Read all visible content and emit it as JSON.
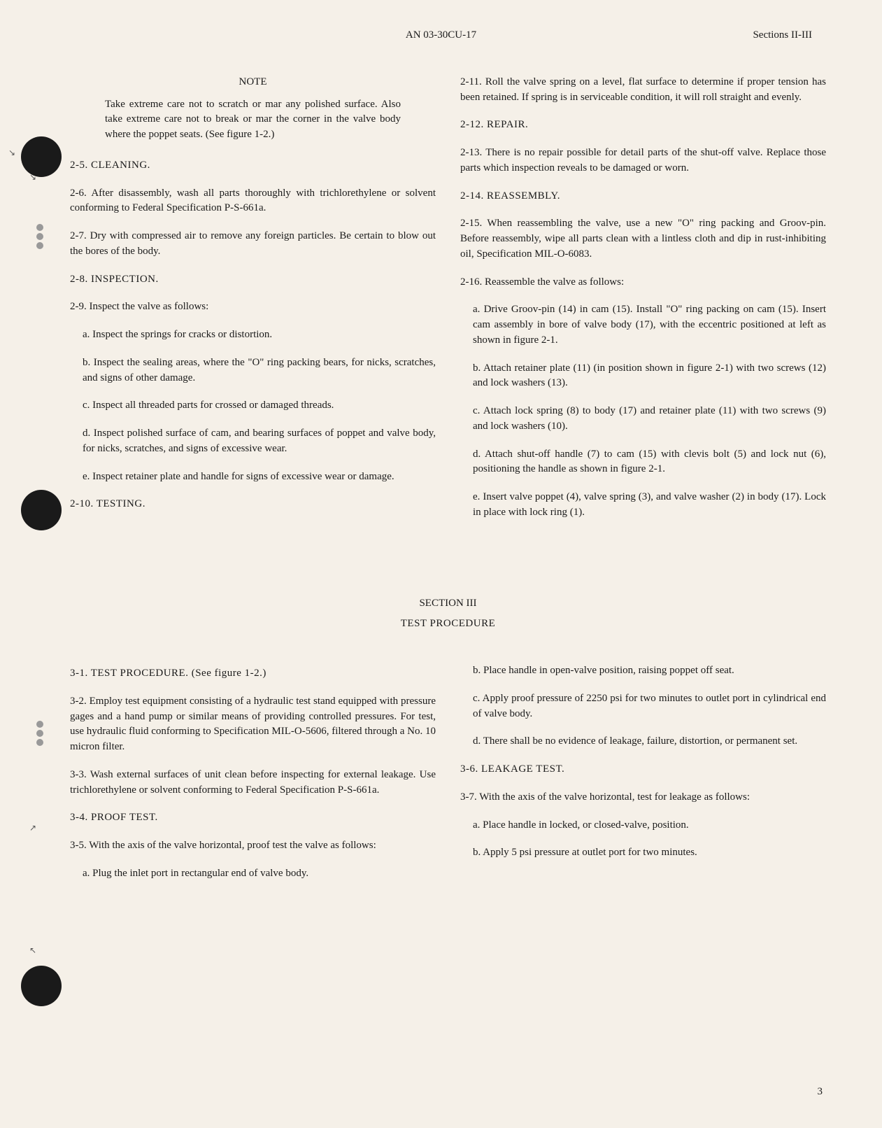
{
  "header": {
    "document_id": "AN 03-30CU-17",
    "sections": "Sections II-III"
  },
  "note": {
    "heading": "NOTE",
    "body": "Take extreme care not to scratch or mar any polished surface. Also take extreme care not to break or mar the corner in the valve body where the poppet seats. (See figure 1-2.)"
  },
  "sections": {
    "s2_5": "2-5. CLEANING.",
    "p2_6": "2-6. After disassembly, wash all parts thoroughly with trichlorethylene or solvent conforming to Federal Specification P-S-661a.",
    "p2_7": "2-7. Dry with compressed air to remove any foreign particles. Be certain to blow out the bores of the body.",
    "s2_8": "2-8. INSPECTION.",
    "p2_9": "2-9. Inspect the valve as follows:",
    "p2_9a": "a. Inspect the springs for cracks or distortion.",
    "p2_9b": "b. Inspect the sealing areas, where the \"O\" ring packing bears, for nicks, scratches, and signs of other damage.",
    "p2_9c": "c. Inspect all threaded parts for crossed or damaged threads.",
    "p2_9d": "d. Inspect polished surface of cam, and bearing surfaces of poppet and valve body, for nicks, scratches, and signs of excessive wear.",
    "p2_9e": "e. Inspect retainer plate and handle for signs of excessive wear or damage.",
    "s2_10": "2-10. TESTING.",
    "p2_11": "2-11. Roll the valve spring on a level, flat surface to determine if proper tension has been retained. If spring is in serviceable condition, it will roll straight and evenly.",
    "s2_12": "2-12. REPAIR.",
    "p2_13": "2-13. There is no repair possible for detail parts of the shut-off valve. Replace those parts which inspection reveals to be damaged or worn.",
    "s2_14": "2-14. REASSEMBLY.",
    "p2_15": "2-15. When reassembling the valve, use a new \"O\" ring packing and Groov-pin. Before reassembly, wipe all parts clean with a lintless cloth and dip in rust-inhibiting oil, Specification MIL-O-6083.",
    "p2_16": "2-16. Reassemble the valve as follows:",
    "p2_16a": "a. Drive Groov-pin (14) in cam (15). Install \"O\" ring packing on cam (15). Insert cam assembly in bore of valve body (17), with the eccentric positioned at left as shown in figure 2-1.",
    "p2_16b": "b. Attach retainer plate (11) (in position shown in figure 2-1) with two screws (12) and lock washers (13).",
    "p2_16c": "c. Attach lock spring (8) to body (17) and retainer plate (11) with two screws (9) and lock washers (10).",
    "p2_16d": "d. Attach shut-off handle (7) to cam (15) with clevis bolt (5) and lock nut (6), positioning the handle as shown in figure 2-1.",
    "p2_16e": "e. Insert valve poppet (4), valve spring (3), and valve washer (2) in body (17). Lock in place with lock ring (1)."
  },
  "section3": {
    "divider": "SECTION III",
    "title": "TEST PROCEDURE",
    "s3_1": "3-1. TEST PROCEDURE. (See figure 1-2.)",
    "p3_2": "3-2. Employ test equipment consisting of a hydraulic test stand equipped with pressure gages and a hand pump or similar means of providing controlled pressures. For test, use hydraulic fluid conforming to Specification MIL-O-5606, filtered through a No. 10 micron filter.",
    "p3_3": "3-3. Wash external surfaces of unit clean before inspecting for external leakage. Use trichlorethylene or solvent conforming to Federal Specification P-S-661a.",
    "s3_4": "3-4. PROOF TEST.",
    "p3_5": "3-5. With the axis of the valve horizontal, proof test the valve as follows:",
    "p3_5a": "a. Plug the inlet port in rectangular end of valve body.",
    "p3_5b": "b. Place handle in open-valve position, raising poppet off seat.",
    "p3_5c": "c. Apply proof pressure of 2250 psi for two minutes to outlet port in cylindrical end of valve body.",
    "p3_5d": "d. There shall be no evidence of leakage, failure, distortion, or permanent set.",
    "s3_6": "3-6. LEAKAGE TEST.",
    "p3_7": "3-7. With the axis of the valve horizontal, test for leakage as follows:",
    "p3_7a": "a. Place handle in locked, or closed-valve, position.",
    "p3_7b": "b. Apply 5 psi pressure at outlet port for two minutes."
  },
  "page_number": "3"
}
